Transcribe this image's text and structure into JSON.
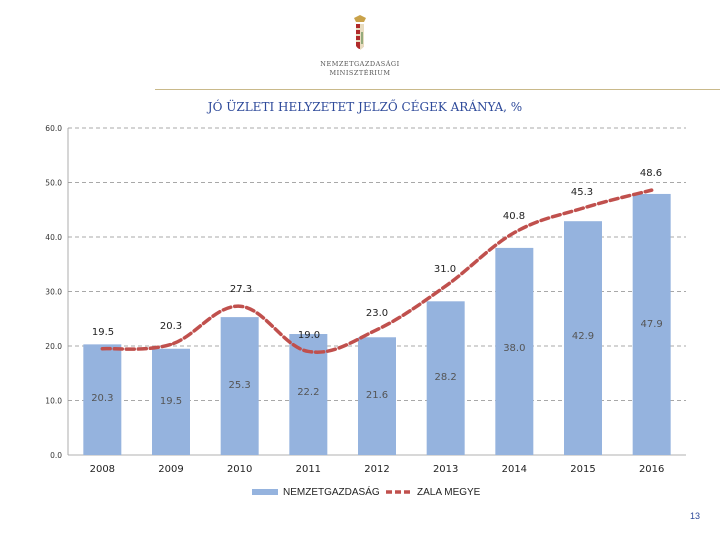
{
  "header": {
    "logo_line1": "NEMZETGAZDASÁGI",
    "logo_line2": "MINISZTÉRIUM"
  },
  "page_number": "13",
  "colors": {
    "bar": "#95b3de",
    "line": "#c0504d",
    "grid": "#8c8c8c",
    "title": "#2e4a9a",
    "label": "#555555"
  },
  "chart_data": {
    "type": "bar",
    "title": "JÓ ÜZLETI HELYZETET JELZŐ CÉGEK ARÁNYA, %",
    "categories": [
      "2008",
      "2009",
      "2010",
      "2011",
      "2012",
      "2013",
      "2014",
      "2015",
      "2016"
    ],
    "ylim": [
      0,
      60
    ],
    "yticks": [
      "0.0",
      "10.0",
      "20.0",
      "30.0",
      "40.0",
      "50.0",
      "60.0"
    ],
    "grid": true,
    "legend_position": "bottom",
    "series": [
      {
        "name": "NEMZETGAZDASÁG",
        "type": "bar",
        "values": [
          20.3,
          19.5,
          25.3,
          22.2,
          21.6,
          28.2,
          38.0,
          42.9,
          47.9
        ],
        "labels": [
          "20.3",
          "19.5",
          "25.3",
          "22.2",
          "21.6",
          "28.2",
          "38.0",
          "42.9",
          "47.9"
        ]
      },
      {
        "name": "ZALA MEGYE",
        "type": "line",
        "values": [
          19.5,
          20.3,
          27.3,
          19.0,
          23.0,
          31.0,
          40.8,
          45.3,
          48.6
        ],
        "labels": [
          "19.5",
          "20.3",
          "27.3",
          "19.0",
          "23.0",
          "31.0",
          "40.8",
          "45.3",
          "48.6"
        ]
      }
    ]
  }
}
